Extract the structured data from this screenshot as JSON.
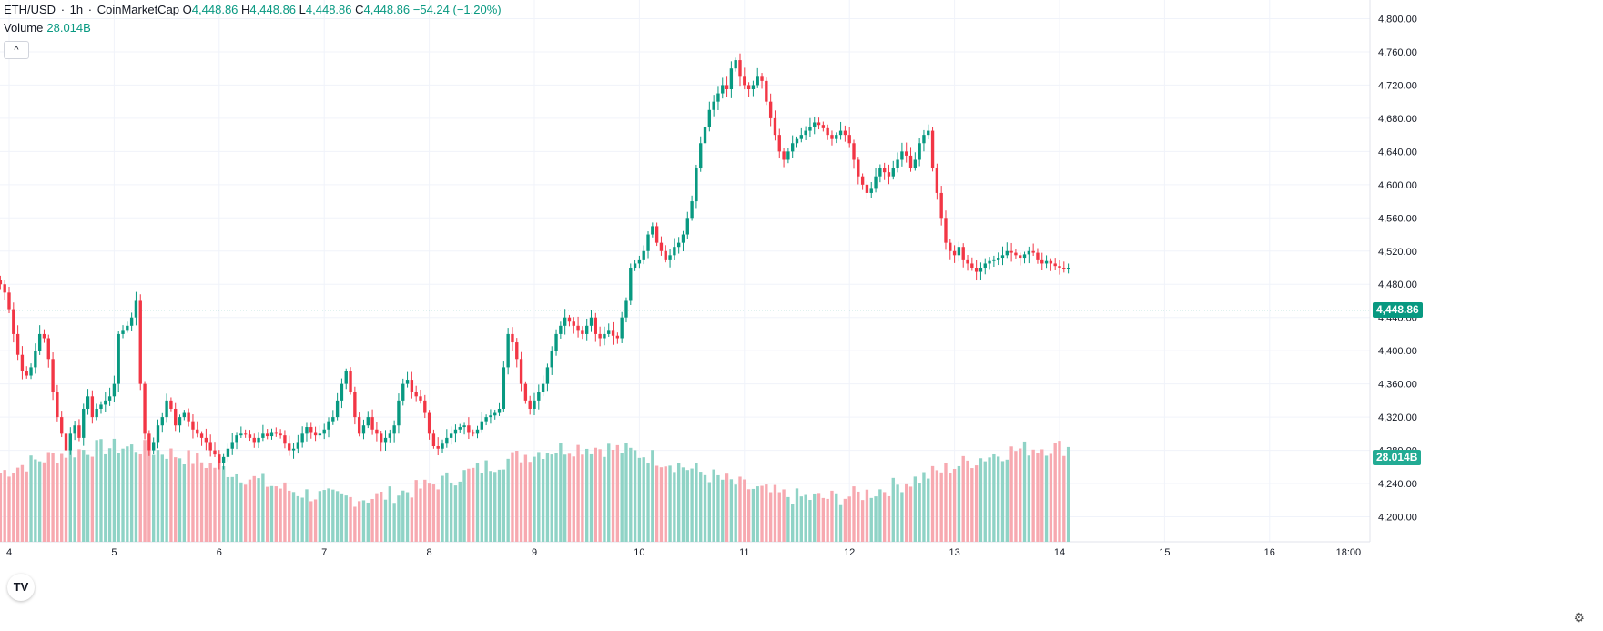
{
  "legend": {
    "symbol": "ETH/USD",
    "interval": "1h",
    "source": "CoinMarketCap",
    "open_label": "O",
    "open": "4,448.86",
    "high_label": "H",
    "high": "4,448.86",
    "low_label": "L",
    "low": "4,448.86",
    "close_label": "C",
    "close": "4,448.86",
    "change": "−54.24 (−1.20%)",
    "volume_label": "Volume",
    "volume_value": "28.014B"
  },
  "badges": {
    "price": "4,448.86",
    "volume": "28.014B"
  },
  "colors": {
    "up": "#089981",
    "down": "#f23645",
    "up_vol": "#8fd3c6",
    "down_vol": "#f7a9b0",
    "grid": "#f0f3fa",
    "axis_text": "#131722"
  },
  "icons": {
    "collapse": "chevron-up-icon",
    "logo": "tradingview-logo-icon",
    "settings": "gear-icon"
  },
  "logo_text": "TV",
  "chart_data": {
    "type": "candlestick",
    "title": "ETH/USD · 1h · CoinMarketCap",
    "y_ticks": [
      "4,200.00",
      "4,240.00",
      "4,280.00",
      "4,320.00",
      "4,360.00",
      "4,400.00",
      "4,440.00",
      "4,480.00",
      "4,520.00",
      "4,560.00",
      "4,600.00",
      "4,640.00",
      "4,680.00",
      "4,720.00",
      "4,760.00",
      "4,800.00"
    ],
    "y_values": [
      4200,
      4240,
      4280,
      4320,
      4360,
      4400,
      4440,
      4480,
      4520,
      4560,
      4600,
      4640,
      4680,
      4720,
      4760,
      4800
    ],
    "ylim": [
      4190,
      4810
    ],
    "x_ticks": [
      "4",
      "5",
      "6",
      "7",
      "8",
      "9",
      "10",
      "11",
      "12",
      "13",
      "14",
      "15",
      "16",
      "18:00"
    ],
    "x_tick_hours": [
      0,
      24,
      48,
      72,
      96,
      120,
      144,
      168,
      192,
      216,
      240,
      264,
      288,
      306
    ],
    "hours_start": -2,
    "current_price": 4448.86,
    "closes": [
      4480,
      4470,
      4450,
      4420,
      4395,
      4375,
      4370,
      4380,
      4400,
      4420,
      4415,
      4390,
      4350,
      4320,
      4300,
      4280,
      4300,
      4310,
      4295,
      4330,
      4345,
      4320,
      4330,
      4335,
      4340,
      4345,
      4360,
      4420,
      4425,
      4430,
      4440,
      4460,
      4360,
      4300,
      4280,
      4290,
      4310,
      4320,
      4340,
      4330,
      4310,
      4320,
      4325,
      4315,
      4305,
      4300,
      4295,
      4290,
      4280,
      4275,
      4265,
      4272,
      4282,
      4290,
      4298,
      4300,
      4299,
      4295,
      4290,
      4295,
      4300,
      4297,
      4302,
      4300,
      4298,
      4288,
      4280,
      4282,
      4290,
      4300,
      4308,
      4302,
      4298,
      4300,
      4305,
      4315,
      4320,
      4340,
      4360,
      4375,
      4350,
      4320,
      4300,
      4310,
      4320,
      4305,
      4300,
      4290,
      4295,
      4300,
      4310,
      4340,
      4360,
      4365,
      4350,
      4345,
      4340,
      4325,
      4300,
      4285,
      4282,
      4288,
      4295,
      4300,
      4305,
      4308,
      4310,
      4302,
      4300,
      4305,
      4315,
      4320,
      4322,
      4325,
      4330,
      4380,
      4420,
      4410,
      4390,
      4360,
      4340,
      4330,
      4340,
      4350,
      4360,
      4380,
      4400,
      4420,
      4430,
      4440,
      4435,
      4430,
      4425,
      4420,
      4430,
      4440,
      4420,
      4415,
      4420,
      4425,
      4418,
      4415,
      4440,
      4460,
      4500,
      4505,
      4510,
      4520,
      4540,
      4550,
      4530,
      4520,
      4510,
      4515,
      4525,
      4530,
      4540,
      4560,
      4580,
      4620,
      4650,
      4670,
      4690,
      4700,
      4710,
      4720,
      4715,
      4740,
      4750,
      4730,
      4720,
      4715,
      4720,
      4730,
      4725,
      4700,
      4680,
      4660,
      4640,
      4630,
      4640,
      4650,
      4655,
      4660,
      4665,
      4670,
      4675,
      4672,
      4668,
      4660,
      4655,
      4660,
      4665,
      4660,
      4650,
      4630,
      4610,
      4600,
      4590,
      4595,
      4610,
      4620,
      4615,
      4610,
      4620,
      4630,
      4640,
      4635,
      4620,
      4630,
      4650,
      4660,
      4665,
      4620,
      4590,
      4560,
      4530,
      4520,
      4515,
      4525,
      4510,
      4505,
      4500,
      4495,
      4500,
      4505,
      4508,
      4510,
      4512,
      4515,
      4520,
      4518,
      4515,
      4512,
      4516,
      4520,
      4518,
      4510,
      4505,
      4508,
      4505,
      4502,
      4500,
      4499,
      4500
    ]
  }
}
